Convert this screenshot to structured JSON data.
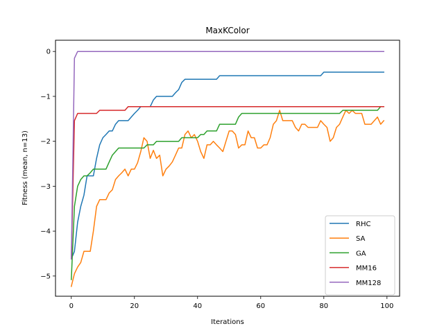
{
  "chart_data": {
    "type": "line",
    "title": "MaxKColor",
    "xlabel": "Iterations",
    "ylabel": "Fitness (mean, n=13)",
    "xlim": [
      -5,
      104
    ],
    "ylim": [
      -5.45,
      0.25
    ],
    "xticks": [
      0,
      20,
      40,
      60,
      80,
      100
    ],
    "yticks": [
      0,
      -1,
      -2,
      -3,
      -4,
      -5
    ],
    "grid": false,
    "legend_position": "lower right",
    "series": [
      {
        "name": "RHC",
        "color": "#1f77b4",
        "x": [
          0,
          1,
          2,
          3,
          4,
          5,
          6,
          7,
          8,
          9,
          10,
          11,
          12,
          13,
          14,
          15,
          16,
          17,
          18,
          19,
          20,
          21,
          22,
          23,
          24,
          25,
          26,
          27,
          28,
          29,
          30,
          31,
          32,
          33,
          34,
          35,
          36,
          37,
          46,
          47,
          79,
          80,
          99
        ],
        "y": [
          -4.62,
          -4.45,
          -3.8,
          -3.45,
          -3.2,
          -2.77,
          -2.77,
          -2.77,
          -2.38,
          -2.08,
          -1.92,
          -1.85,
          -1.77,
          -1.77,
          -1.62,
          -1.54,
          -1.54,
          -1.54,
          -1.54,
          -1.46,
          -1.38,
          -1.31,
          -1.23,
          -1.23,
          -1.23,
          -1.23,
          -1.08,
          -1.0,
          -1.0,
          -1.0,
          -1.0,
          -1.0,
          -1.0,
          -0.92,
          -0.85,
          -0.69,
          -0.62,
          -0.62,
          -0.62,
          -0.54,
          -0.54,
          -0.46,
          -0.46
        ]
      },
      {
        "name": "SA",
        "color": "#ff7f0e",
        "x": [
          0,
          1,
          2,
          3,
          4,
          5,
          6,
          7,
          8,
          9,
          10,
          11,
          12,
          13,
          14,
          15,
          16,
          17,
          18,
          19,
          20,
          21,
          22,
          23,
          24,
          25,
          26,
          27,
          28,
          29,
          30,
          31,
          32,
          33,
          34,
          35,
          36,
          37,
          38,
          39,
          40,
          41,
          42,
          43,
          44,
          45,
          46,
          47,
          48,
          49,
          50,
          51,
          52,
          53,
          54,
          55,
          56,
          57,
          58,
          59,
          60,
          61,
          62,
          63,
          64,
          65,
          66,
          67,
          68,
          69,
          70,
          71,
          72,
          73,
          74,
          75,
          76,
          77,
          78,
          79,
          80,
          81,
          82,
          83,
          84,
          85,
          86,
          87,
          88,
          89,
          90,
          91,
          92,
          93,
          94,
          95,
          96,
          97,
          98,
          99
        ],
        "y": [
          -5.23,
          -4.95,
          -4.8,
          -4.7,
          -4.45,
          -4.45,
          -4.45,
          -4.0,
          -3.45,
          -3.3,
          -3.3,
          -3.3,
          -3.15,
          -3.08,
          -2.85,
          -2.77,
          -2.7,
          -2.62,
          -2.77,
          -2.62,
          -2.62,
          -2.48,
          -2.23,
          -1.92,
          -2.0,
          -2.38,
          -2.2,
          -2.38,
          -2.31,
          -2.77,
          -2.62,
          -2.55,
          -2.46,
          -2.31,
          -2.15,
          -2.15,
          -1.85,
          -1.77,
          -1.92,
          -1.85,
          -2.0,
          -2.23,
          -2.38,
          -2.08,
          -2.08,
          -2.0,
          -2.08,
          -2.15,
          -2.23,
          -2.0,
          -1.77,
          -1.77,
          -1.85,
          -2.15,
          -2.08,
          -2.08,
          -1.77,
          -1.92,
          -1.92,
          -2.15,
          -2.15,
          -2.08,
          -2.08,
          -1.92,
          -1.62,
          -1.54,
          -1.31,
          -1.54,
          -1.54,
          -1.54,
          -1.54,
          -1.69,
          -1.77,
          -1.62,
          -1.62,
          -1.69,
          -1.69,
          -1.69,
          -1.69,
          -1.54,
          -1.62,
          -1.69,
          -2.0,
          -1.92,
          -1.69,
          -1.62,
          -1.46,
          -1.31,
          -1.38,
          -1.31,
          -1.38,
          -1.38,
          -1.38,
          -1.62,
          -1.62,
          -1.62,
          -1.54,
          -1.46,
          -1.62,
          -1.54
        ]
      },
      {
        "name": "GA",
        "color": "#2ca02c",
        "x": [
          0,
          1,
          2,
          3,
          4,
          5,
          6,
          7,
          8,
          9,
          10,
          11,
          12,
          13,
          14,
          15,
          16,
          17,
          18,
          19,
          20,
          21,
          22,
          23,
          24,
          25,
          26,
          27,
          28,
          29,
          30,
          31,
          32,
          33,
          34,
          35,
          36,
          37,
          38,
          39,
          40,
          41,
          42,
          43,
          44,
          45,
          46,
          47,
          48,
          49,
          50,
          51,
          52,
          53,
          54,
          55,
          56,
          85,
          86,
          87,
          88,
          89,
          90,
          91,
          92,
          93,
          94,
          95,
          96,
          97,
          98,
          99
        ],
        "y": [
          -5.08,
          -3.45,
          -3.0,
          -2.85,
          -2.77,
          -2.77,
          -2.7,
          -2.62,
          -2.62,
          -2.62,
          -2.62,
          -2.62,
          -2.46,
          -2.31,
          -2.23,
          -2.15,
          -2.15,
          -2.15,
          -2.15,
          -2.15,
          -2.15,
          -2.15,
          -2.15,
          -2.15,
          -2.08,
          -2.08,
          -2.08,
          -2.0,
          -2.0,
          -2.0,
          -2.0,
          -2.0,
          -2.0,
          -2.0,
          -2.0,
          -1.92,
          -1.92,
          -1.92,
          -1.92,
          -1.92,
          -1.92,
          -1.85,
          -1.85,
          -1.77,
          -1.77,
          -1.77,
          -1.77,
          -1.62,
          -1.62,
          -1.62,
          -1.62,
          -1.62,
          -1.62,
          -1.46,
          -1.38,
          -1.38,
          -1.38,
          -1.38,
          -1.31,
          -1.31,
          -1.31,
          -1.31,
          -1.31,
          -1.31,
          -1.31,
          -1.31,
          -1.31,
          -1.31,
          -1.31,
          -1.31,
          -1.23,
          -1.23
        ]
      },
      {
        "name": "MM16",
        "color": "#d62728",
        "x": [
          0,
          1,
          2,
          8,
          9,
          17,
          18,
          99
        ],
        "y": [
          -4.62,
          -1.54,
          -1.38,
          -1.38,
          -1.31,
          -1.31,
          -1.23,
          -1.23
        ]
      },
      {
        "name": "MM128",
        "color": "#9467bd",
        "x": [
          0,
          1,
          2,
          99
        ],
        "y": [
          -4.62,
          -0.15,
          0,
          0
        ]
      }
    ]
  }
}
